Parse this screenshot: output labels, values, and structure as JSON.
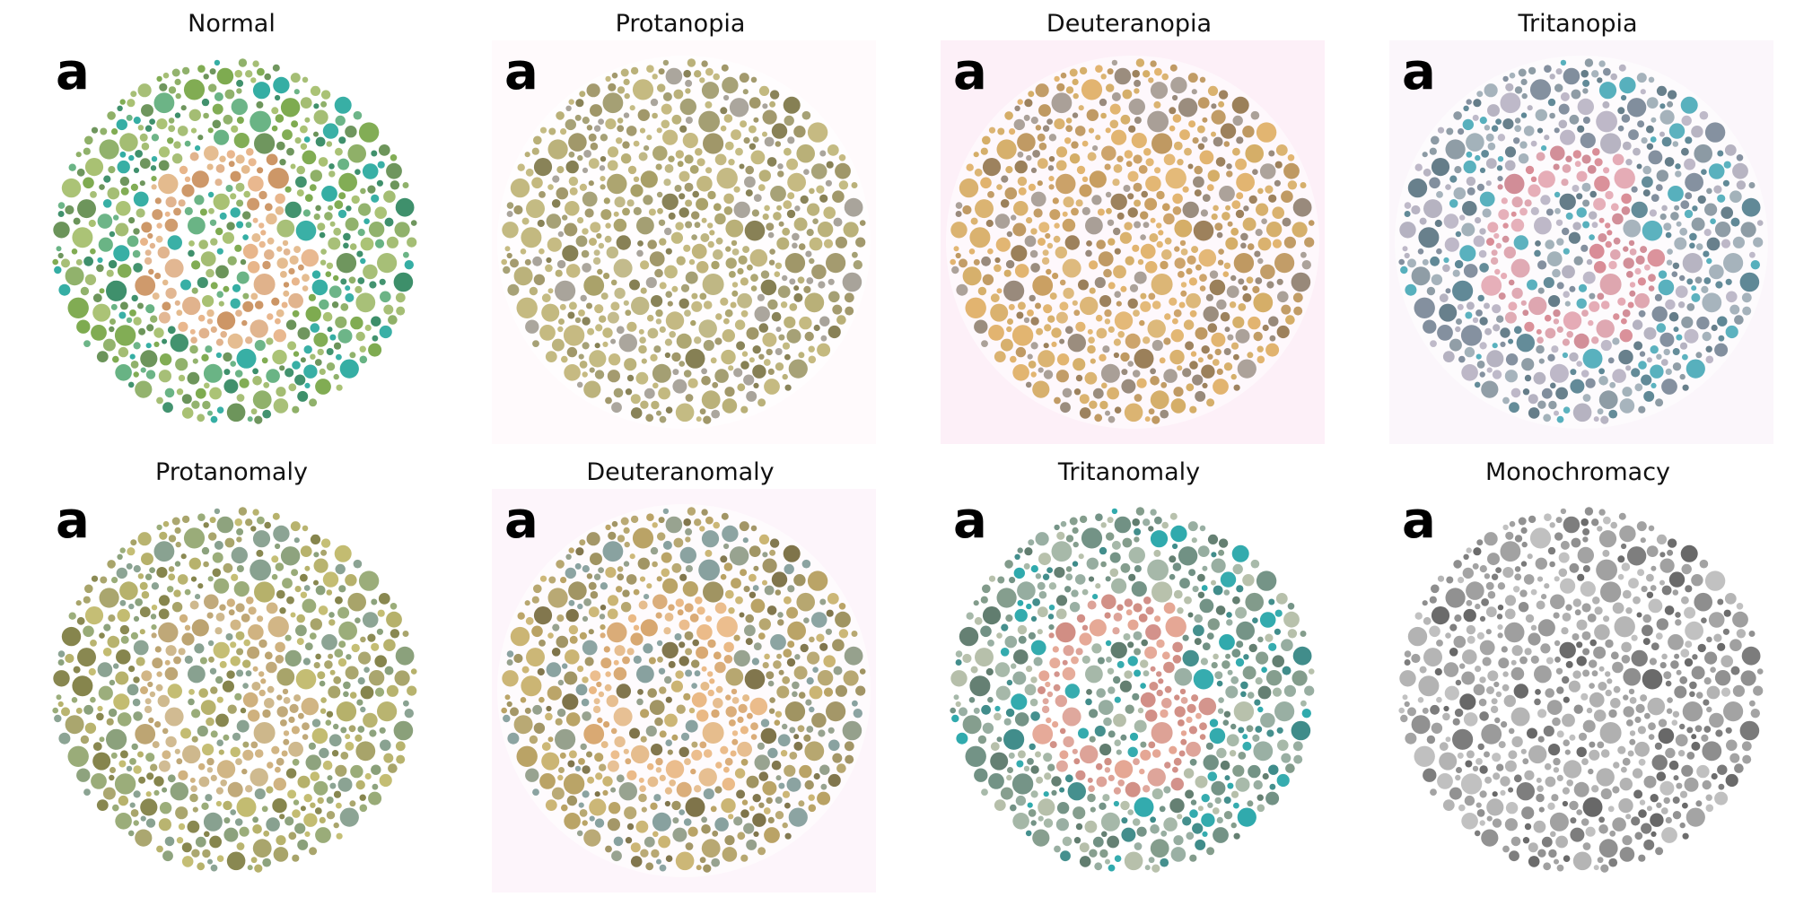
{
  "panels": [
    {
      "title": "Normal",
      "corner_label": "a",
      "bg": "#ffffff",
      "palette": {
        "field": [
          "#6f9a3e",
          "#8fae52",
          "#4f7f3a",
          "#9cb85e",
          "#1fa59a",
          "#5fae7c",
          "#7aa84a",
          "#3d8f6a"
        ],
        "figure": [
          "#d9a070",
          "#e0b07c",
          "#c98e5a",
          "#e8b58a"
        ]
      }
    },
    {
      "title": "Protanopia",
      "corner_label": "a",
      "bg": "#fffafc",
      "palette": {
        "field": [
          "#a59a52",
          "#8b8048",
          "#b8ad6a",
          "#77703f",
          "#9d9868",
          "#c2b67a",
          "#a8a39a"
        ],
        "figure": [
          "#b0a668",
          "#9f9658",
          "#c0b47a"
        ]
      }
    },
    {
      "title": "Deuteranopia",
      "corner_label": "a",
      "bg": "#fdf0f8",
      "palette": {
        "field": [
          "#c9983e",
          "#b18440",
          "#d4a656",
          "#8f7046",
          "#a3988f",
          "#e0b068",
          "#98897a"
        ],
        "figure": [
          "#d4a656",
          "#c39450",
          "#e2b46e"
        ]
      }
    },
    {
      "title": "Tritanopia",
      "corner_label": "a",
      "bg": "#fbf6fb",
      "palette": {
        "field": [
          "#6c7f8a",
          "#8ea0aa",
          "#a7a3b5",
          "#4e6a78",
          "#45a7b6",
          "#b9b3c4",
          "#7d8a9a",
          "#5f8896"
        ],
        "figure": [
          "#d6919c",
          "#c97a86",
          "#e3a5b0",
          "#d98c96"
        ]
      }
    },
    {
      "title": "Protanomaly",
      "corner_label": "a",
      "bg": "#ffffff",
      "palette": {
        "field": [
          "#8f8a40",
          "#a6a04a",
          "#71702e",
          "#bcb460",
          "#7f9a88",
          "#95a872",
          "#8aa07a"
        ],
        "figure": [
          "#c2a670",
          "#b59a62",
          "#ceb07c"
        ]
      }
    },
    {
      "title": "Deuteranomaly",
      "corner_label": "a",
      "bg": "#fdf5fb",
      "palette": {
        "field": [
          "#a38f48",
          "#8b7c40",
          "#c2a85c",
          "#6f6334",
          "#7f9a98",
          "#b69e5e",
          "#95a08c"
        ],
        "figure": [
          "#e0ae72",
          "#d49e62",
          "#eab884"
        ]
      }
    },
    {
      "title": "Tritanomaly",
      "corner_label": "a",
      "bg": "#ffffff",
      "palette": {
        "field": [
          "#5f7f6a",
          "#7e9a8a",
          "#a8b39a",
          "#4a6a5a",
          "#1aa1a4",
          "#9fb3a2",
          "#6c8d80",
          "#3f8c8a"
        ],
        "figure": [
          "#d58c7e",
          "#c97c70",
          "#e3a08c",
          "#d18e86"
        ]
      }
    },
    {
      "title": "Monochromacy",
      "corner_label": "a",
      "bg": "#ffffff",
      "palette": {
        "field": [
          "#6e6e6e",
          "#8a8a8a",
          "#a6a6a6",
          "#555555",
          "#9a9a9a",
          "#bdbdbd",
          "#7a7a7a"
        ],
        "figure": [
          "#9e9e9e",
          "#8f8f8f",
          "#b0b0b0"
        ]
      }
    }
  ]
}
